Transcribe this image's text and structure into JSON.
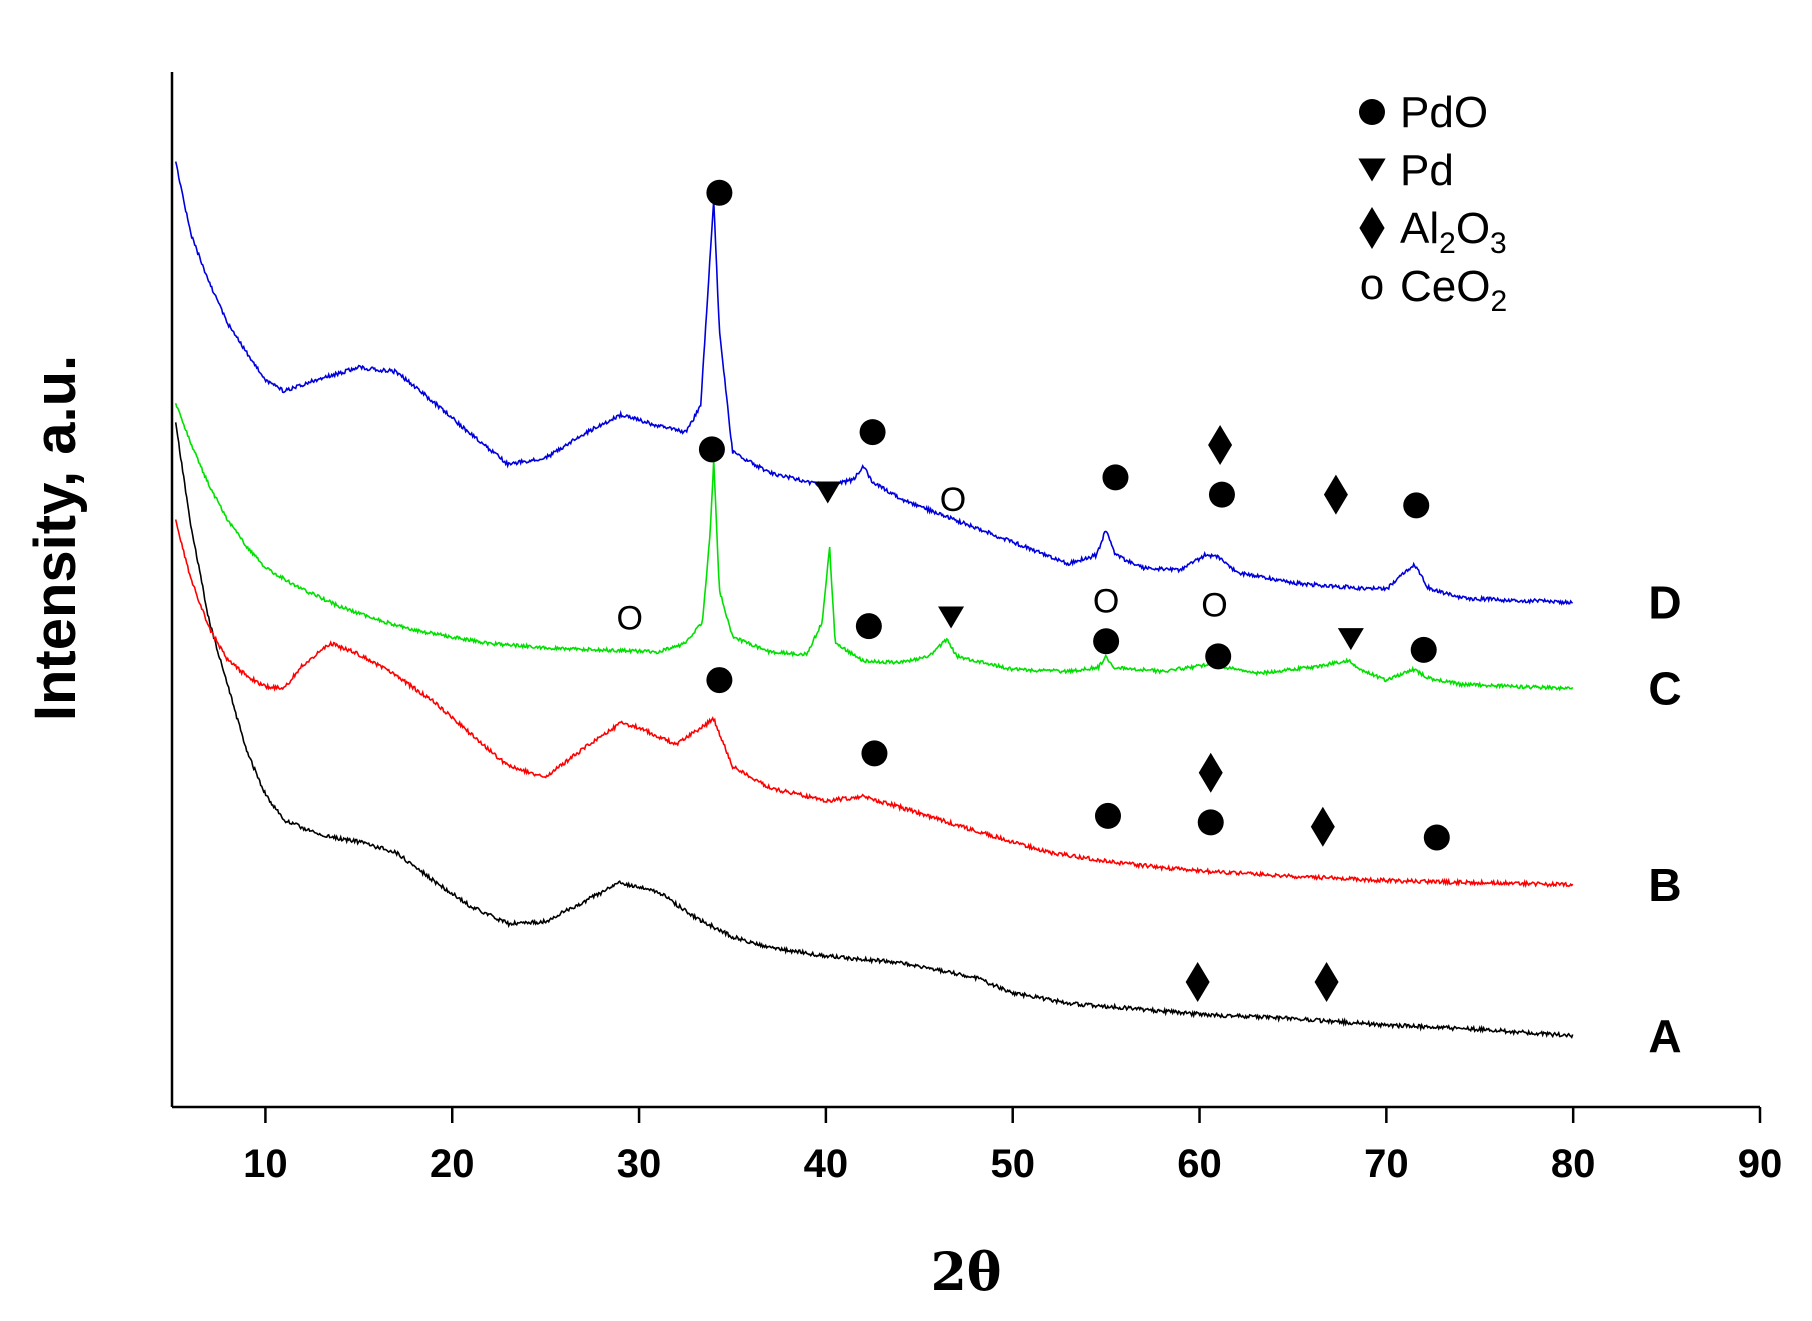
{
  "chart_data": {
    "type": "line",
    "title": "",
    "xlabel": "2θ",
    "ylabel": "Intensity, a.u.",
    "xlim": [
      5,
      90
    ],
    "xticks": [
      10,
      20,
      30,
      40,
      50,
      60,
      70,
      80,
      90
    ],
    "yticks": [],
    "grid": false,
    "legend": {
      "placement": "top-right",
      "entries": [
        {
          "symbol": "circle",
          "name": "PdO",
          "parts": [
            {
              "t": "PdO",
              "sub": false
            }
          ]
        },
        {
          "symbol": "triangle-down",
          "name": "Pd",
          "parts": [
            {
              "t": "Pd",
              "sub": false
            }
          ]
        },
        {
          "symbol": "diamond",
          "name": "Al2O3",
          "parts": [
            {
              "t": "Al",
              "sub": false
            },
            {
              "t": "2",
              "sub": true
            },
            {
              "t": "O",
              "sub": false
            },
            {
              "t": "3",
              "sub": true
            }
          ]
        },
        {
          "symbol": "open-circle",
          "name": "CeO2",
          "parts": [
            {
              "t": "CeO",
              "sub": false
            },
            {
              "t": "2",
              "sub": true
            }
          ]
        }
      ]
    },
    "series": [
      {
        "name": "A",
        "label": "A",
        "color": "#000000",
        "noise": 4,
        "seed": 11,
        "points": [
          [
            5.2,
            31.7
          ],
          [
            6,
            27
          ],
          [
            7,
            22.5
          ],
          [
            8,
            19.5
          ],
          [
            9,
            16.5
          ],
          [
            10,
            14.5
          ],
          [
            11,
            13.3
          ],
          [
            13,
            12.6
          ],
          [
            15,
            12.3
          ],
          [
            17,
            11.8
          ],
          [
            19,
            10.5
          ],
          [
            21,
            9.3
          ],
          [
            23,
            8.5
          ],
          [
            25,
            8.6
          ],
          [
            27,
            9.5
          ],
          [
            29,
            10.4
          ],
          [
            31,
            10
          ],
          [
            33,
            8.8
          ],
          [
            35,
            7.9
          ],
          [
            37,
            7.4
          ],
          [
            40,
            7
          ],
          [
            44,
            6.7
          ],
          [
            48,
            6
          ],
          [
            50,
            5.3
          ],
          [
            53,
            4.8
          ],
          [
            56,
            4.6
          ],
          [
            60,
            4.3
          ],
          [
            65,
            4.1
          ],
          [
            70,
            3.8
          ],
          [
            75,
            3.6
          ],
          [
            80,
            3.3
          ]
        ],
        "markers": [
          {
            "symbol": "diamond",
            "x": 59.9,
            "y": 5.8
          },
          {
            "symbol": "diamond",
            "x": 66.8,
            "y": 5.8
          }
        ]
      },
      {
        "name": "B",
        "label": "B",
        "color": "#ff0000",
        "noise": 4,
        "seed": 23,
        "points": [
          [
            5.2,
            27.2
          ],
          [
            6,
            24.5
          ],
          [
            7,
            22.2
          ],
          [
            8,
            20.7
          ],
          [
            9,
            20
          ],
          [
            10,
            19.5
          ],
          [
            11,
            19.4
          ],
          [
            12,
            20.5
          ],
          [
            13.5,
            21.5
          ],
          [
            15,
            21
          ],
          [
            17,
            20
          ],
          [
            19,
            18.8
          ],
          [
            21,
            17.3
          ],
          [
            23,
            15.8
          ],
          [
            25,
            15.3
          ],
          [
            27,
            16.6
          ],
          [
            29,
            17.8
          ],
          [
            30,
            17.6
          ],
          [
            32,
            16.8
          ],
          [
            33.5,
            17.7
          ],
          [
            34,
            18
          ],
          [
            35,
            15.8
          ],
          [
            37,
            14.8
          ],
          [
            40,
            14.2
          ],
          [
            42,
            14.4
          ],
          [
            44,
            13.9
          ],
          [
            48,
            12.8
          ],
          [
            52,
            11.8
          ],
          [
            55,
            11.4
          ],
          [
            58,
            11.1
          ],
          [
            61,
            10.9
          ],
          [
            65,
            10.7
          ],
          [
            70,
            10.5
          ],
          [
            75,
            10.4
          ],
          [
            80,
            10.3
          ]
        ],
        "markers": [
          {
            "symbol": "circle",
            "x": 34.3,
            "y": 19.8
          },
          {
            "symbol": "circle",
            "x": 42.6,
            "y": 16.4
          },
          {
            "symbol": "diamond",
            "x": 60.6,
            "y": 15.5
          },
          {
            "symbol": "circle",
            "x": 55.1,
            "y": 13.5
          },
          {
            "symbol": "circle",
            "x": 60.6,
            "y": 13.2
          },
          {
            "symbol": "diamond",
            "x": 66.6,
            "y": 13
          },
          {
            "symbol": "circle",
            "x": 72.7,
            "y": 12.5
          }
        ]
      },
      {
        "name": "C",
        "label": "C",
        "color": "#00e000",
        "noise": 3.5,
        "seed": 37,
        "points": [
          [
            5.2,
            32.6
          ],
          [
            6,
            30.8
          ],
          [
            7,
            28.8
          ],
          [
            8,
            27.2
          ],
          [
            9,
            26
          ],
          [
            10,
            25
          ],
          [
            12,
            24
          ],
          [
            14,
            23.2
          ],
          [
            16,
            22.6
          ],
          [
            18,
            22.1
          ],
          [
            20,
            21.8
          ],
          [
            22,
            21.5
          ],
          [
            25,
            21.3
          ],
          [
            28,
            21.2
          ],
          [
            31,
            21.1
          ],
          [
            32.5,
            21.5
          ],
          [
            33.4,
            22.5
          ],
          [
            33.8,
            26.5
          ],
          [
            34,
            30
          ],
          [
            34.3,
            24
          ],
          [
            35,
            21.8
          ],
          [
            37,
            21.1
          ],
          [
            39,
            21
          ],
          [
            39.8,
            22.5
          ],
          [
            40.2,
            26
          ],
          [
            40.5,
            21.5
          ],
          [
            42,
            20.7
          ],
          [
            44,
            20.6
          ],
          [
            45.5,
            20.9
          ],
          [
            46.5,
            21.7
          ],
          [
            47,
            20.9
          ],
          [
            50,
            20.3
          ],
          [
            53,
            20.2
          ],
          [
            54.6,
            20.4
          ],
          [
            55,
            20.9
          ],
          [
            55.4,
            20.4
          ],
          [
            58,
            20.2
          ],
          [
            60.4,
            20.5
          ],
          [
            60.8,
            20.9
          ],
          [
            61.3,
            20.4
          ],
          [
            63,
            20.1
          ],
          [
            66,
            20.4
          ],
          [
            67.4,
            20.6
          ],
          [
            68,
            20.7
          ],
          [
            68.5,
            20.3
          ],
          [
            70,
            19.8
          ],
          [
            71.5,
            20.3
          ],
          [
            72.2,
            19.9
          ],
          [
            74,
            19.6
          ],
          [
            80,
            19.4
          ]
        ],
        "markers": [
          {
            "symbol": "open-circle",
            "x": 29.5,
            "y": 22.7
          },
          {
            "symbol": "circle",
            "x": 33.9,
            "y": 30.5
          },
          {
            "symbol": "triangle-down",
            "x": 40.1,
            "y": 28.5
          },
          {
            "symbol": "open-circle",
            "x": 46.8,
            "y": 28.2
          },
          {
            "symbol": "circle",
            "x": 42.3,
            "y": 22.3
          },
          {
            "symbol": "triangle-down",
            "x": 46.7,
            "y": 22.7
          },
          {
            "symbol": "open-circle",
            "x": 55,
            "y": 23.5
          },
          {
            "symbol": "open-circle",
            "x": 60.8,
            "y": 23.3
          },
          {
            "symbol": "circle",
            "x": 55,
            "y": 21.6
          },
          {
            "symbol": "circle",
            "x": 61,
            "y": 20.9
          },
          {
            "symbol": "triangle-down",
            "x": 68.1,
            "y": 21.7
          },
          {
            "symbol": "circle",
            "x": 72,
            "y": 21.2
          }
        ]
      },
      {
        "name": "D",
        "label": "D",
        "color": "#0000dd",
        "noise": 4,
        "seed": 53,
        "points": [
          [
            5.2,
            43.8
          ],
          [
            6,
            40.5
          ],
          [
            7,
            38.2
          ],
          [
            8,
            36.3
          ],
          [
            9,
            35
          ],
          [
            10,
            33.7
          ],
          [
            11,
            33.2
          ],
          [
            13,
            33.8
          ],
          [
            15,
            34.3
          ],
          [
            17,
            34.1
          ],
          [
            19,
            32.7
          ],
          [
            21,
            31.2
          ],
          [
            23,
            29.8
          ],
          [
            25,
            30.1
          ],
          [
            27,
            31.2
          ],
          [
            29,
            32.1
          ],
          [
            31,
            31.6
          ],
          [
            32.5,
            31.3
          ],
          [
            33.3,
            32.5
          ],
          [
            33.7,
            38
          ],
          [
            34,
            42
          ],
          [
            34.3,
            36
          ],
          [
            35,
            30.4
          ],
          [
            37,
            29.4
          ],
          [
            40,
            28.8
          ],
          [
            41.5,
            29.1
          ],
          [
            42,
            29.7
          ],
          [
            42.5,
            29
          ],
          [
            44,
            28.2
          ],
          [
            47,
            27.2
          ],
          [
            50,
            26.2
          ],
          [
            53,
            25.2
          ],
          [
            54.5,
            25.6
          ],
          [
            55,
            26.8
          ],
          [
            55.5,
            25.6
          ],
          [
            57,
            25
          ],
          [
            59,
            24.9
          ],
          [
            60.3,
            25.6
          ],
          [
            61,
            25.5
          ],
          [
            62,
            24.8
          ],
          [
            65,
            24.3
          ],
          [
            68,
            24.1
          ],
          [
            70,
            24
          ],
          [
            71,
            24.8
          ],
          [
            71.5,
            25.2
          ],
          [
            72.2,
            24.1
          ],
          [
            74,
            23.6
          ],
          [
            80,
            23.4
          ]
        ],
        "markers": [
          {
            "symbol": "circle",
            "x": 34.3,
            "y": 42.4
          },
          {
            "symbol": "circle",
            "x": 42.5,
            "y": 31.3
          },
          {
            "symbol": "diamond",
            "x": 61.1,
            "y": 30.7
          },
          {
            "symbol": "circle",
            "x": 55.5,
            "y": 29.2
          },
          {
            "symbol": "circle",
            "x": 61.2,
            "y": 28.4
          },
          {
            "symbol": "diamond",
            "x": 67.3,
            "y": 28.4
          },
          {
            "symbol": "circle",
            "x": 71.6,
            "y": 27.9
          }
        ]
      }
    ]
  }
}
